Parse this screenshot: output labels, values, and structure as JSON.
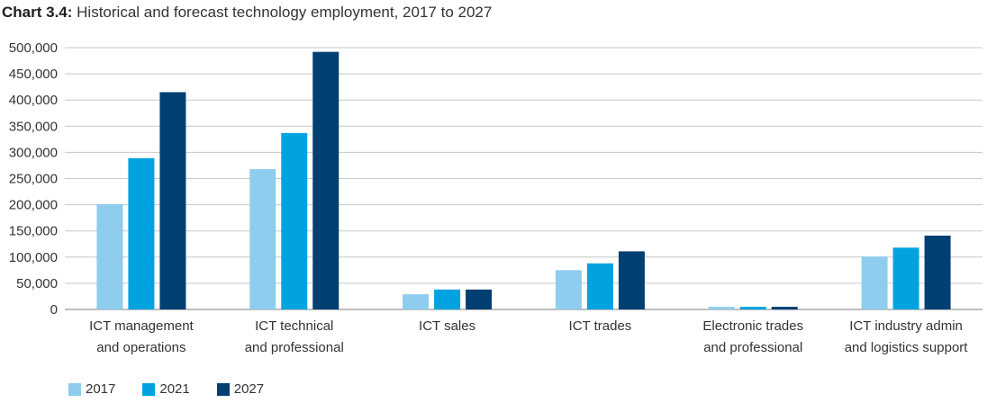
{
  "title": {
    "lead": "Chart 3.4:",
    "text": "Historical and forecast technology employment, 2017 to 2027"
  },
  "chart_data": {
    "type": "bar",
    "categories": [
      [
        "ICT management",
        "and operations"
      ],
      [
        "ICT technical",
        "and professional"
      ],
      [
        "ICT sales"
      ],
      [
        "ICT trades"
      ],
      [
        "Electronic trades",
        "and professional"
      ],
      [
        "ICT industry admin",
        "and logistics support"
      ]
    ],
    "series": [
      {
        "name": "2017",
        "color": "#8ecdee",
        "values": [
          201000,
          268000,
          29000,
          75000,
          5000,
          101000
        ]
      },
      {
        "name": "2021",
        "color": "#00a3e0",
        "values": [
          289000,
          337000,
          38000,
          88000,
          5000,
          118000
        ]
      },
      {
        "name": "2027",
        "color": "#003f72",
        "values": [
          415000,
          492000,
          38000,
          111000,
          5000,
          141000
        ]
      }
    ],
    "ylim": [
      0,
      500000
    ],
    "yticks": [
      0,
      50000,
      100000,
      150000,
      200000,
      250000,
      300000,
      350000,
      400000,
      450000,
      500000
    ],
    "ytick_labels": [
      "0",
      "50,000",
      "100,000",
      "150,000",
      "200,000",
      "250,000",
      "300,000",
      "350,000",
      "400,000",
      "450,000",
      "500,000"
    ],
    "grid": true,
    "legend_position": "bottom-left"
  }
}
